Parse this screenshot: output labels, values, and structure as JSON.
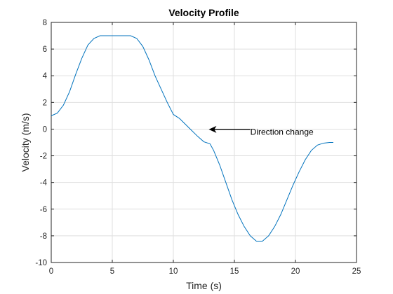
{
  "chart_data": {
    "type": "line",
    "title": "Velocity Profile",
    "xlabel": "Time (s)",
    "ylabel": "Velocity (m/s)",
    "xlim": [
      0,
      25
    ],
    "ylim": [
      -10,
      8
    ],
    "xticks": [
      0,
      5,
      10,
      15,
      20,
      25
    ],
    "yticks": [
      -10,
      -8,
      -6,
      -4,
      -2,
      0,
      2,
      4,
      6,
      8
    ],
    "grid": true,
    "series": [
      {
        "color": "#0072BD",
        "x": [
          0,
          0.5,
          1,
          1.5,
          2,
          2.5,
          3,
          3.5,
          4,
          4.5,
          5,
          5.5,
          6,
          6.5,
          7,
          7.5,
          8,
          8.5,
          9,
          9.5,
          10,
          10.5,
          11,
          11.5,
          12,
          12.5,
          13,
          13.3,
          13.8,
          14.3,
          14.8,
          15.3,
          15.8,
          16.3,
          16.8,
          17.3,
          17.8,
          18.3,
          18.8,
          19.3,
          19.8,
          20.3,
          20.8,
          21.3,
          21.8,
          22.3,
          22.8,
          23.1
        ],
        "y": [
          1.0,
          1.2,
          1.8,
          2.8,
          4.1,
          5.3,
          6.3,
          6.8,
          7.0,
          7.0,
          7.0,
          7.0,
          7.0,
          7.0,
          6.8,
          6.2,
          5.2,
          4.0,
          3.0,
          2.0,
          1.1,
          0.8,
          0.35,
          -0.1,
          -0.55,
          -0.95,
          -1.1,
          -1.6,
          -2.7,
          -4.0,
          -5.3,
          -6.4,
          -7.3,
          -8.0,
          -8.4,
          -8.4,
          -8.0,
          -7.3,
          -6.4,
          -5.3,
          -4.2,
          -3.2,
          -2.3,
          -1.6,
          -1.2,
          -1.05,
          -1.0,
          -1.0
        ]
      }
    ],
    "annotations": [
      {
        "text": "Direction change",
        "x_text": 16.3,
        "y_text": -0.12,
        "x_head": 12.9,
        "y_head": -0.02
      }
    ]
  }
}
